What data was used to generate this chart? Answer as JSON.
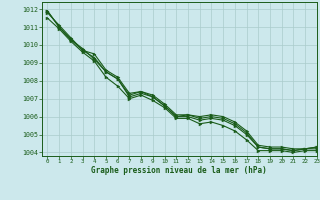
{
  "title": "Graphe pression niveau de la mer (hPa)",
  "bg_color": "#cce8ec",
  "grid_color": "#aacccc",
  "line_color": "#1a5c1a",
  "marker_color": "#1a5c1a",
  "xlim": [
    -0.5,
    23
  ],
  "ylim": [
    1003.8,
    1012.4
  ],
  "xticks": [
    0,
    1,
    2,
    3,
    4,
    5,
    6,
    7,
    8,
    9,
    10,
    11,
    12,
    13,
    14,
    15,
    16,
    17,
    18,
    19,
    20,
    21,
    22,
    23
  ],
  "yticks": [
    1004,
    1005,
    1006,
    1007,
    1008,
    1009,
    1010,
    1011,
    1012
  ],
  "series": [
    [
      1011.9,
      1011.0,
      1010.3,
      1009.8,
      1009.2,
      1008.5,
      1008.1,
      1007.1,
      1007.3,
      1007.1,
      1006.6,
      1006.0,
      1006.0,
      1005.8,
      1005.9,
      1005.8,
      1005.5,
      1005.0,
      1004.3,
      1004.2,
      1004.2,
      1004.1,
      1004.2,
      1004.2
    ],
    [
      1011.9,
      1011.0,
      1010.3,
      1009.7,
      1009.3,
      1008.5,
      1008.1,
      1007.2,
      1007.4,
      1007.1,
      1006.6,
      1006.0,
      1006.1,
      1005.9,
      1006.0,
      1005.9,
      1005.6,
      1005.1,
      1004.3,
      1004.2,
      1004.2,
      1004.1,
      1004.2,
      1004.3
    ],
    [
      1011.8,
      1011.1,
      1010.4,
      1009.7,
      1009.5,
      1008.6,
      1008.2,
      1007.3,
      1007.4,
      1007.2,
      1006.7,
      1006.1,
      1006.1,
      1006.0,
      1006.1,
      1006.0,
      1005.7,
      1005.2,
      1004.4,
      1004.3,
      1004.3,
      1004.2,
      1004.2,
      1004.3
    ],
    [
      1011.5,
      1010.9,
      1010.2,
      1009.6,
      1009.1,
      1008.2,
      1007.7,
      1007.0,
      1007.2,
      1006.9,
      1006.5,
      1005.9,
      1005.9,
      1005.6,
      1005.7,
      1005.5,
      1005.2,
      1004.7,
      1004.1,
      1004.1,
      1004.1,
      1004.0,
      1004.1,
      1004.1
    ]
  ]
}
